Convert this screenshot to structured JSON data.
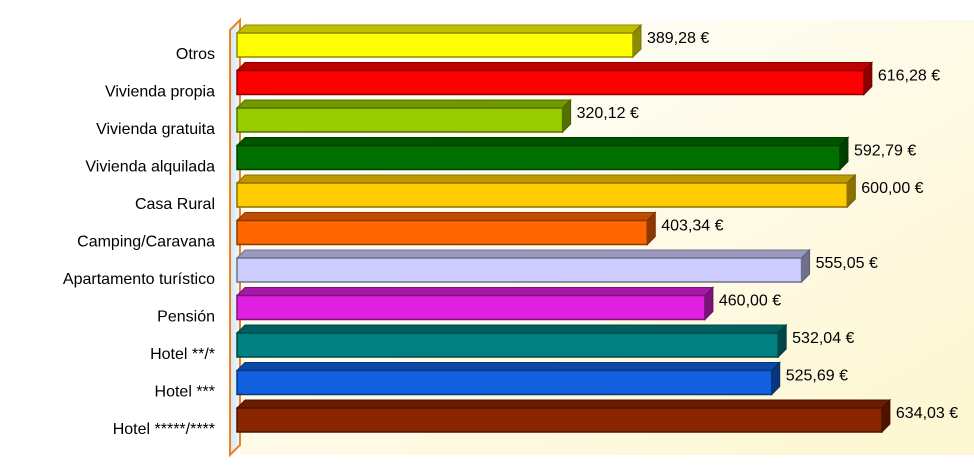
{
  "chart_data": {
    "type": "bar3d_horizontal",
    "categories": [
      "Otros",
      "Vivienda propia",
      "Vivienda gratuita",
      "Vivienda alquilada",
      "Casa Rural",
      "Camping/Caravana",
      "Apartamento turístico",
      "Pensión",
      "Hotel **/*",
      "Hotel ***",
      "Hotel *****/****"
    ],
    "values": [
      389.28,
      616.28,
      320.12,
      592.79,
      600.0,
      403.34,
      555.05,
      460.0,
      532.04,
      525.69,
      634.03
    ],
    "value_labels": [
      "389,28 €",
      "616,28 €",
      "320,12 €",
      "592,79 €",
      "600,00 €",
      "403,34 €",
      "555,05 €",
      "460,00 €",
      "532,04 €",
      "525,69 €",
      "634,03 €"
    ],
    "colors": [
      "#ffff00",
      "#ff0000",
      "#99cc00",
      "#007000",
      "#ffcc00",
      "#ff6600",
      "#ccccff",
      "#e020e0",
      "#008080",
      "#1060e0",
      "#8b2500"
    ],
    "xlim": [
      0,
      700
    ]
  }
}
